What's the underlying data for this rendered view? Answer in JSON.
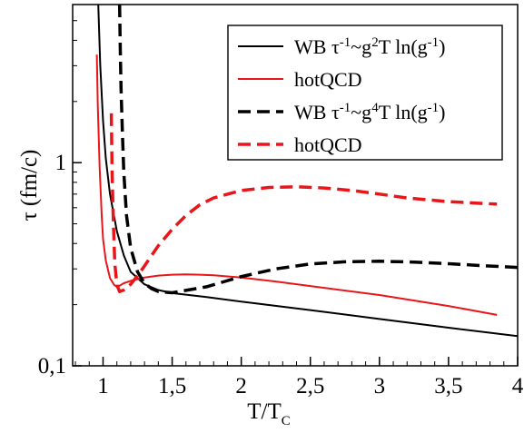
{
  "chart_data": {
    "type": "line",
    "title": "",
    "xlabel": "T/T",
    "xlabel_subscript": "C",
    "ylabel": "τ (fm/c)",
    "xlim": [
      0.78,
      4.0
    ],
    "ylim": [
      0.1,
      6.0
    ],
    "yscale": "log",
    "grid": false,
    "legend_position": "top-right",
    "x_ticks": [
      {
        "value": 1.0,
        "label": "1"
      },
      {
        "value": 1.5,
        "label": "1,5"
      },
      {
        "value": 2.0,
        "label": "2"
      },
      {
        "value": 2.5,
        "label": "2,5"
      },
      {
        "value": 3.0,
        "label": "3"
      },
      {
        "value": 3.5,
        "label": "3,5"
      },
      {
        "value": 4.0,
        "label": "4"
      }
    ],
    "y_ticks": [
      {
        "value": 0.1,
        "label": "0,1"
      },
      {
        "value": 1.0,
        "label": "1"
      }
    ],
    "series": [
      {
        "name": "WB τ⁻¹~g²T ln(g⁻¹)",
        "legend": [
          {
            "t": "WB τ"
          },
          {
            "t": "-1",
            "sup": true
          },
          {
            "t": "~g"
          },
          {
            "t": "2",
            "sup": true
          },
          {
            "t": "T ln(g"
          },
          {
            "t": "-1",
            "sup": true
          },
          {
            "t": ")"
          }
        ],
        "color": "#000000",
        "dashed": false,
        "x": [
          0.965,
          0.98,
          1.0,
          1.02,
          1.05,
          1.1,
          1.15,
          1.2,
          1.3,
          1.4,
          1.5,
          1.75,
          2.0,
          2.5,
          3.0,
          3.5,
          4.0
        ],
        "y": [
          6.0,
          3.0,
          1.6,
          1.05,
          0.7,
          0.46,
          0.35,
          0.29,
          0.252,
          0.236,
          0.228,
          0.218,
          0.207,
          0.188,
          0.17,
          0.154,
          0.14
        ]
      },
      {
        "name": "hotQCD",
        "legend": [
          {
            "t": "hotQCD"
          }
        ],
        "color": "#e8161b",
        "dashed": false,
        "x": [
          0.955,
          0.962,
          0.975,
          0.99,
          1.0,
          1.02,
          1.05,
          1.08,
          1.1,
          1.12,
          1.15,
          1.2,
          1.3,
          1.4,
          1.5,
          1.6,
          1.7,
          1.8,
          2.0,
          2.25,
          2.5,
          3.0,
          3.5,
          3.85
        ],
        "y": [
          3.4,
          1.9,
          0.95,
          0.55,
          0.42,
          0.33,
          0.27,
          0.25,
          0.245,
          0.248,
          0.255,
          0.262,
          0.272,
          0.278,
          0.281,
          0.282,
          0.281,
          0.279,
          0.272,
          0.26,
          0.247,
          0.223,
          0.197,
          0.178
        ]
      },
      {
        "name": "WB τ⁻¹~g⁴T ln(g⁻¹)",
        "legend": [
          {
            "t": "WB τ"
          },
          {
            "t": "-1",
            "sup": true
          },
          {
            "t": "~g"
          },
          {
            "t": "4",
            "sup": true
          },
          {
            "t": "T ln(g"
          },
          {
            "t": "-1",
            "sup": true
          },
          {
            "t": ")"
          }
        ],
        "color": "#000000",
        "dashed": true,
        "x": [
          1.12,
          1.125,
          1.13,
          1.14,
          1.15,
          1.17,
          1.2,
          1.25,
          1.3,
          1.35,
          1.4,
          1.5,
          1.75,
          2.0,
          2.25,
          2.5,
          2.75,
          3.0,
          3.25,
          3.5,
          3.75,
          4.0
        ],
        "y": [
          6.0,
          3.5,
          2.3,
          1.4,
          0.9,
          0.55,
          0.38,
          0.29,
          0.255,
          0.24,
          0.232,
          0.229,
          0.245,
          0.275,
          0.3,
          0.317,
          0.325,
          0.327,
          0.324,
          0.318,
          0.311,
          0.305
        ]
      },
      {
        "name": "hotQCD",
        "legend": [
          {
            "t": "hotQCD"
          }
        ],
        "color": "#e8161b",
        "dashed": true,
        "x": [
          1.06,
          1.065,
          1.075,
          1.085,
          1.1,
          1.12,
          1.15,
          1.2,
          1.25,
          1.3,
          1.4,
          1.5,
          1.6,
          1.7,
          1.8,
          2.0,
          2.2,
          2.4,
          2.6,
          2.8,
          3.0,
          3.2,
          3.5,
          3.85
        ],
        "y": [
          1.75,
          0.9,
          0.5,
          0.32,
          0.25,
          0.232,
          0.236,
          0.252,
          0.278,
          0.31,
          0.39,
          0.47,
          0.55,
          0.62,
          0.67,
          0.73,
          0.755,
          0.76,
          0.75,
          0.73,
          0.7,
          0.67,
          0.643,
          0.625
        ]
      }
    ]
  }
}
